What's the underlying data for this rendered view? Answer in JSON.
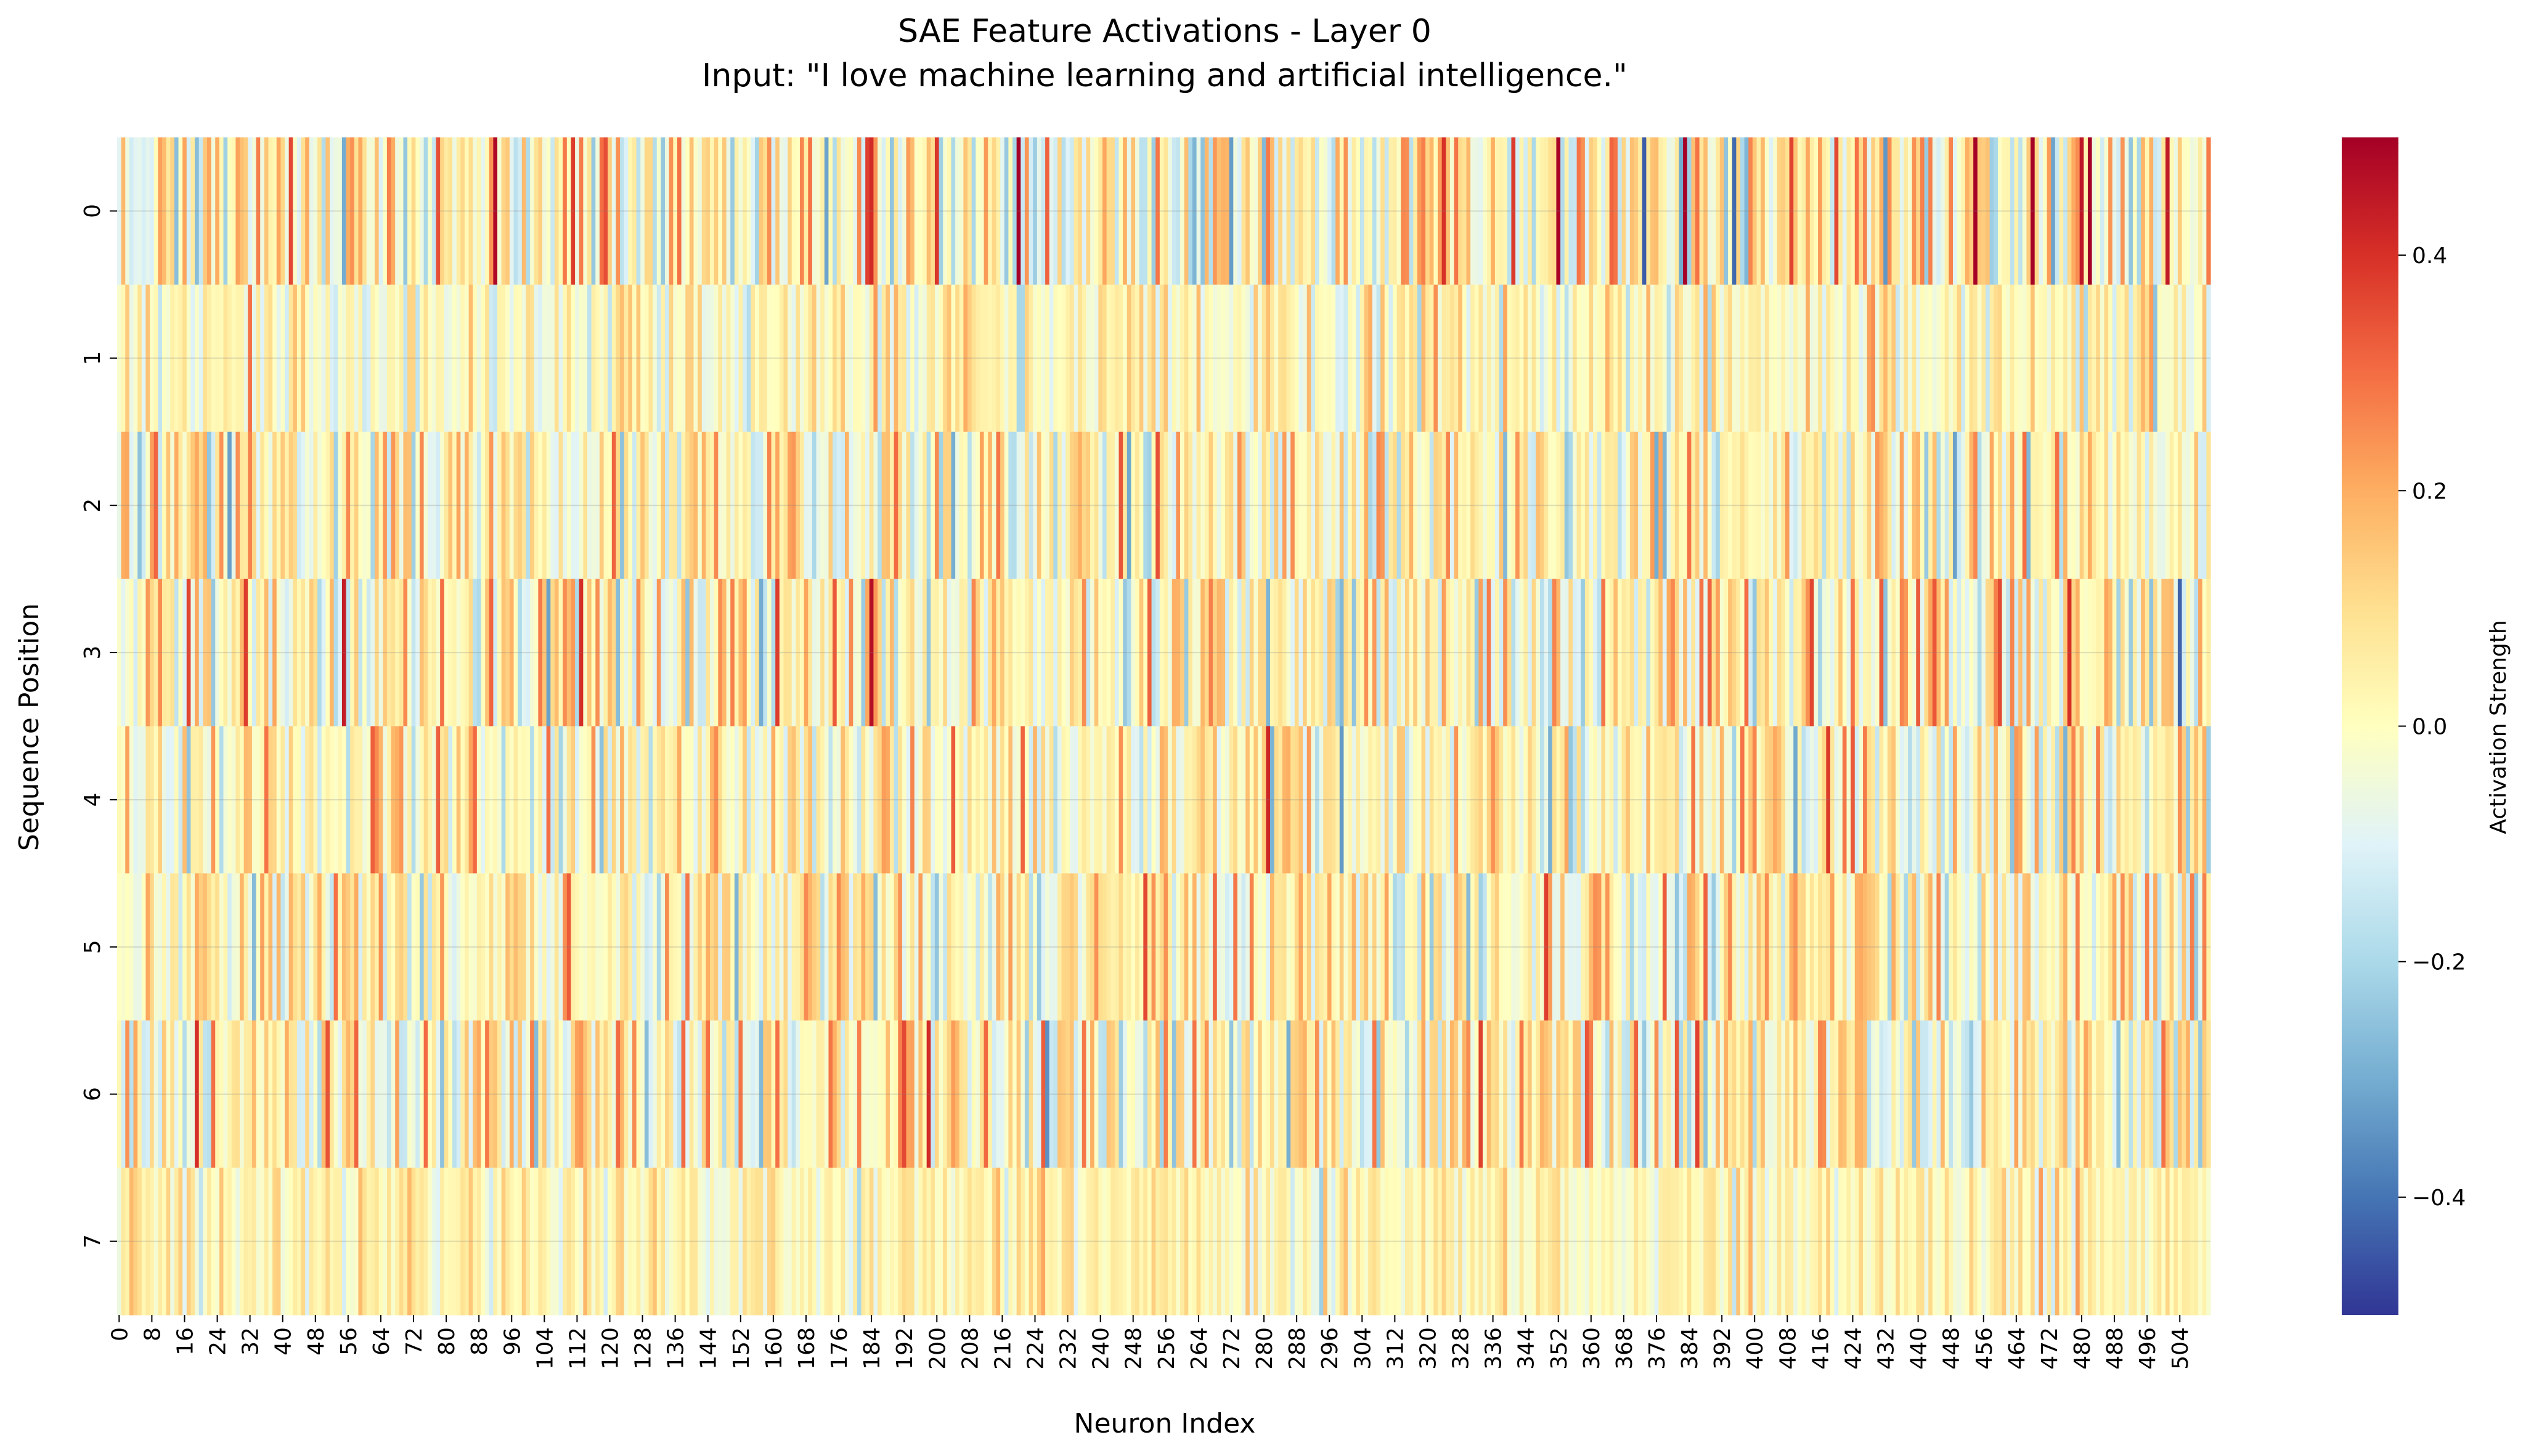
{
  "chart_data": {
    "type": "heatmap",
    "title": "SAE Feature Activations - Layer 0",
    "subtitle": "Input: \"I love machine learning and artificial intelligence.\"",
    "xlabel": "Neuron Index",
    "ylabel": "Sequence Position",
    "colorbar_label": "Activation Strength",
    "colormap": "RdYlBu_r",
    "colormap_stops": [
      "#313695",
      "#4575b4",
      "#74add1",
      "#abd9e9",
      "#e0f3f8",
      "#ffffbf",
      "#fee090",
      "#fdae61",
      "#f46d43",
      "#d73027",
      "#a50026"
    ],
    "vmin": -0.5,
    "vmax": 0.5,
    "rows": 8,
    "cols": 512,
    "x_ticks": [
      0,
      8,
      16,
      24,
      32,
      40,
      48,
      56,
      64,
      72,
      80,
      88,
      96,
      104,
      112,
      120,
      128,
      136,
      144,
      152,
      160,
      168,
      176,
      184,
      192,
      200,
      208,
      216,
      224,
      232,
      240,
      248,
      256,
      264,
      272,
      280,
      288,
      296,
      304,
      312,
      320,
      328,
      336,
      344,
      352,
      360,
      368,
      376,
      384,
      392,
      400,
      408,
      416,
      424,
      432,
      440,
      448,
      456,
      464,
      472,
      480,
      488,
      496,
      504
    ],
    "y_ticks": [
      0,
      1,
      2,
      3,
      4,
      5,
      6,
      7
    ],
    "colorbar_ticks": [
      0.4,
      0.2,
      0.0,
      -0.2,
      -0.4
    ],
    "colorbar_tick_labels": [
      "0.4",
      "0.2",
      "0.0",
      "−0.2",
      "−0.4"
    ],
    "grid": true,
    "values_note_text": "",
    "random_seed": 1337,
    "row_value_scale": [
      0.17,
      0.09,
      0.13,
      0.14,
      0.13,
      0.12,
      0.14,
      0.07
    ],
    "row_value_offset": [
      0.03,
      0.01,
      0.02,
      0.03,
      0.03,
      0.03,
      0.03,
      0.03
    ]
  }
}
